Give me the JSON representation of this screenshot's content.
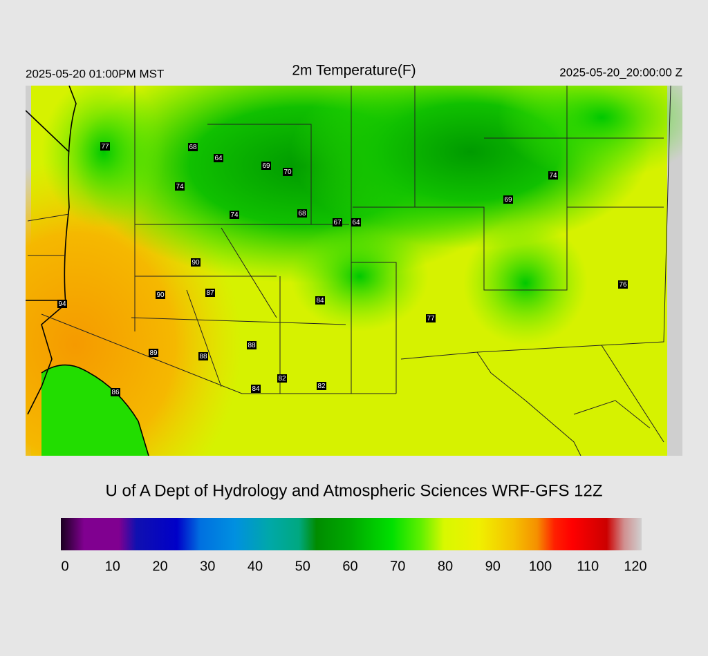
{
  "header": {
    "left": "2025-05-20 01:00PM MST",
    "title": "2m Temperature(F)",
    "right": "2025-05-20_20:00:00 Z"
  },
  "station_labels": [
    77,
    68,
    64,
    69,
    70,
    74,
    74,
    68,
    67,
    64,
    74,
    69,
    90,
    90,
    87,
    94,
    84,
    76,
    77,
    88,
    89,
    88,
    82,
    82,
    84,
    86
  ],
  "credit": "U of A Dept of Hydrology and Atmospheric Sciences WRF-GFS 12Z",
  "colorbar": {
    "lim": [
      0,
      120
    ],
    "ticks": [
      0,
      10,
      20,
      30,
      40,
      50,
      60,
      70,
      80,
      90,
      100,
      110,
      120
    ]
  }
}
